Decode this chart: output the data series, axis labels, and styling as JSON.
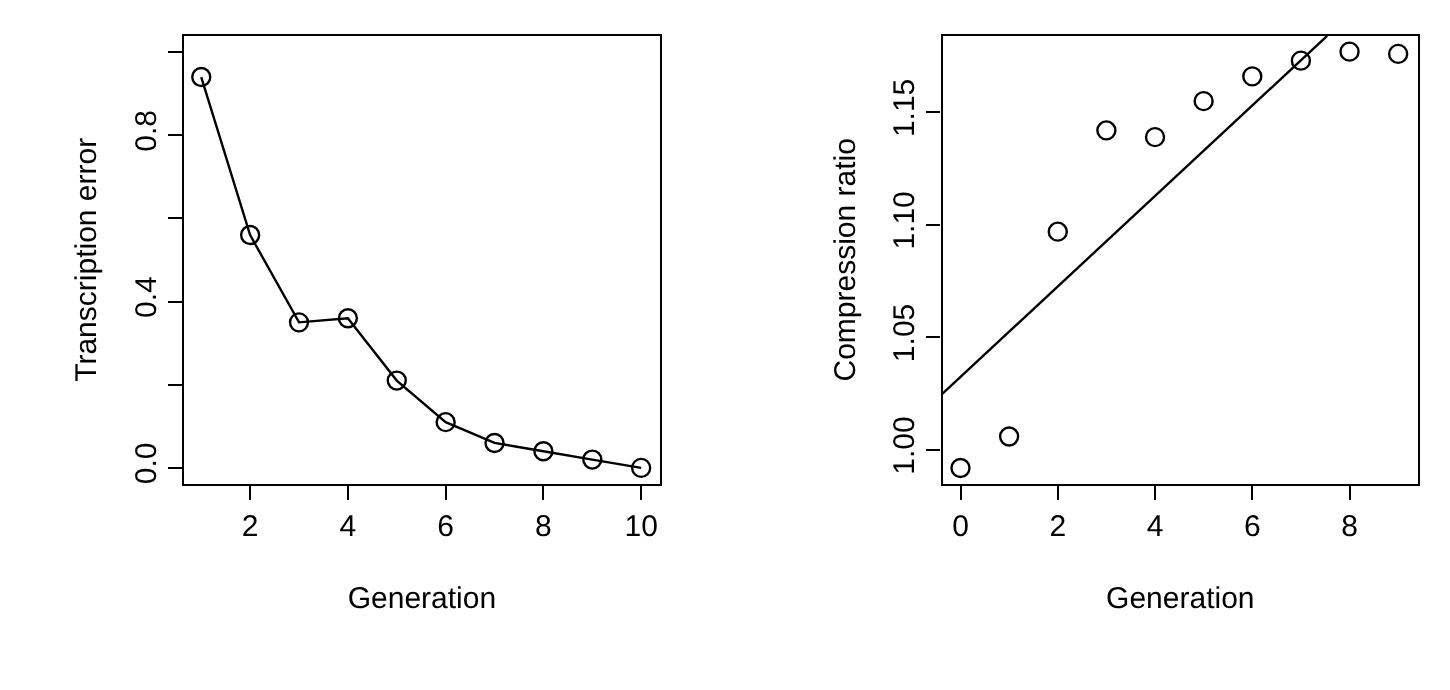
{
  "chart_data": [
    {
      "type": "line",
      "xlabel": "Generation",
      "ylabel": "Transcription error",
      "marker": "circle",
      "line_style": "solid",
      "x": [
        1,
        2,
        3,
        4,
        5,
        6,
        7,
        8,
        9,
        10
      ],
      "series": [
        {
          "color": "#000000",
          "values": [
            0.94,
            0.56,
            0.35,
            0.36,
            0.21,
            0.11,
            0.06,
            0.04,
            0.02,
            0.0
          ]
        }
      ],
      "xlim": [
        0.65,
        10.38
      ],
      "ylim": [
        -0.038,
        1.039
      ],
      "xticks": [
        2,
        4,
        6,
        8,
        10
      ],
      "yticks": [
        {
          "value": 0.0,
          "label": "0.0"
        },
        {
          "value": 0.2,
          "label": null
        },
        {
          "value": 0.4,
          "label": "0.4"
        },
        {
          "value": 0.6,
          "label": null
        },
        {
          "value": 0.8,
          "label": "0.8"
        },
        {
          "value": 1.0,
          "label": null
        }
      ]
    },
    {
      "type": "scatter",
      "xlabel": "Generation",
      "ylabel": "Compression ratio",
      "series": [
        {
          "type": "scatter",
          "marker": "circle",
          "color": "#000000",
          "x": [
            0,
            1,
            2,
            3,
            4,
            5,
            6,
            7,
            8,
            9
          ],
          "values": [
            0.992,
            1.006,
            1.097,
            1.142,
            1.139,
            1.155,
            1.166,
            1.173,
            1.177,
            1.176
          ]
        },
        {
          "type": "line",
          "marker": "none",
          "line_style": "solid",
          "color": "#000000",
          "x": [
            -0.37,
            7.54
          ],
          "values": [
            1.025,
            1.184
          ]
        }
      ],
      "xlim": [
        -0.37,
        9.41
      ],
      "ylim": [
        0.985,
        1.184
      ],
      "xticks": [
        0,
        2,
        4,
        6,
        8
      ],
      "yticks": [
        {
          "value": 1.0,
          "label": "1.00"
        },
        {
          "value": 1.05,
          "label": "1.05"
        },
        {
          "value": 1.1,
          "label": "1.10"
        },
        {
          "value": 1.15,
          "label": "1.15"
        }
      ]
    }
  ]
}
